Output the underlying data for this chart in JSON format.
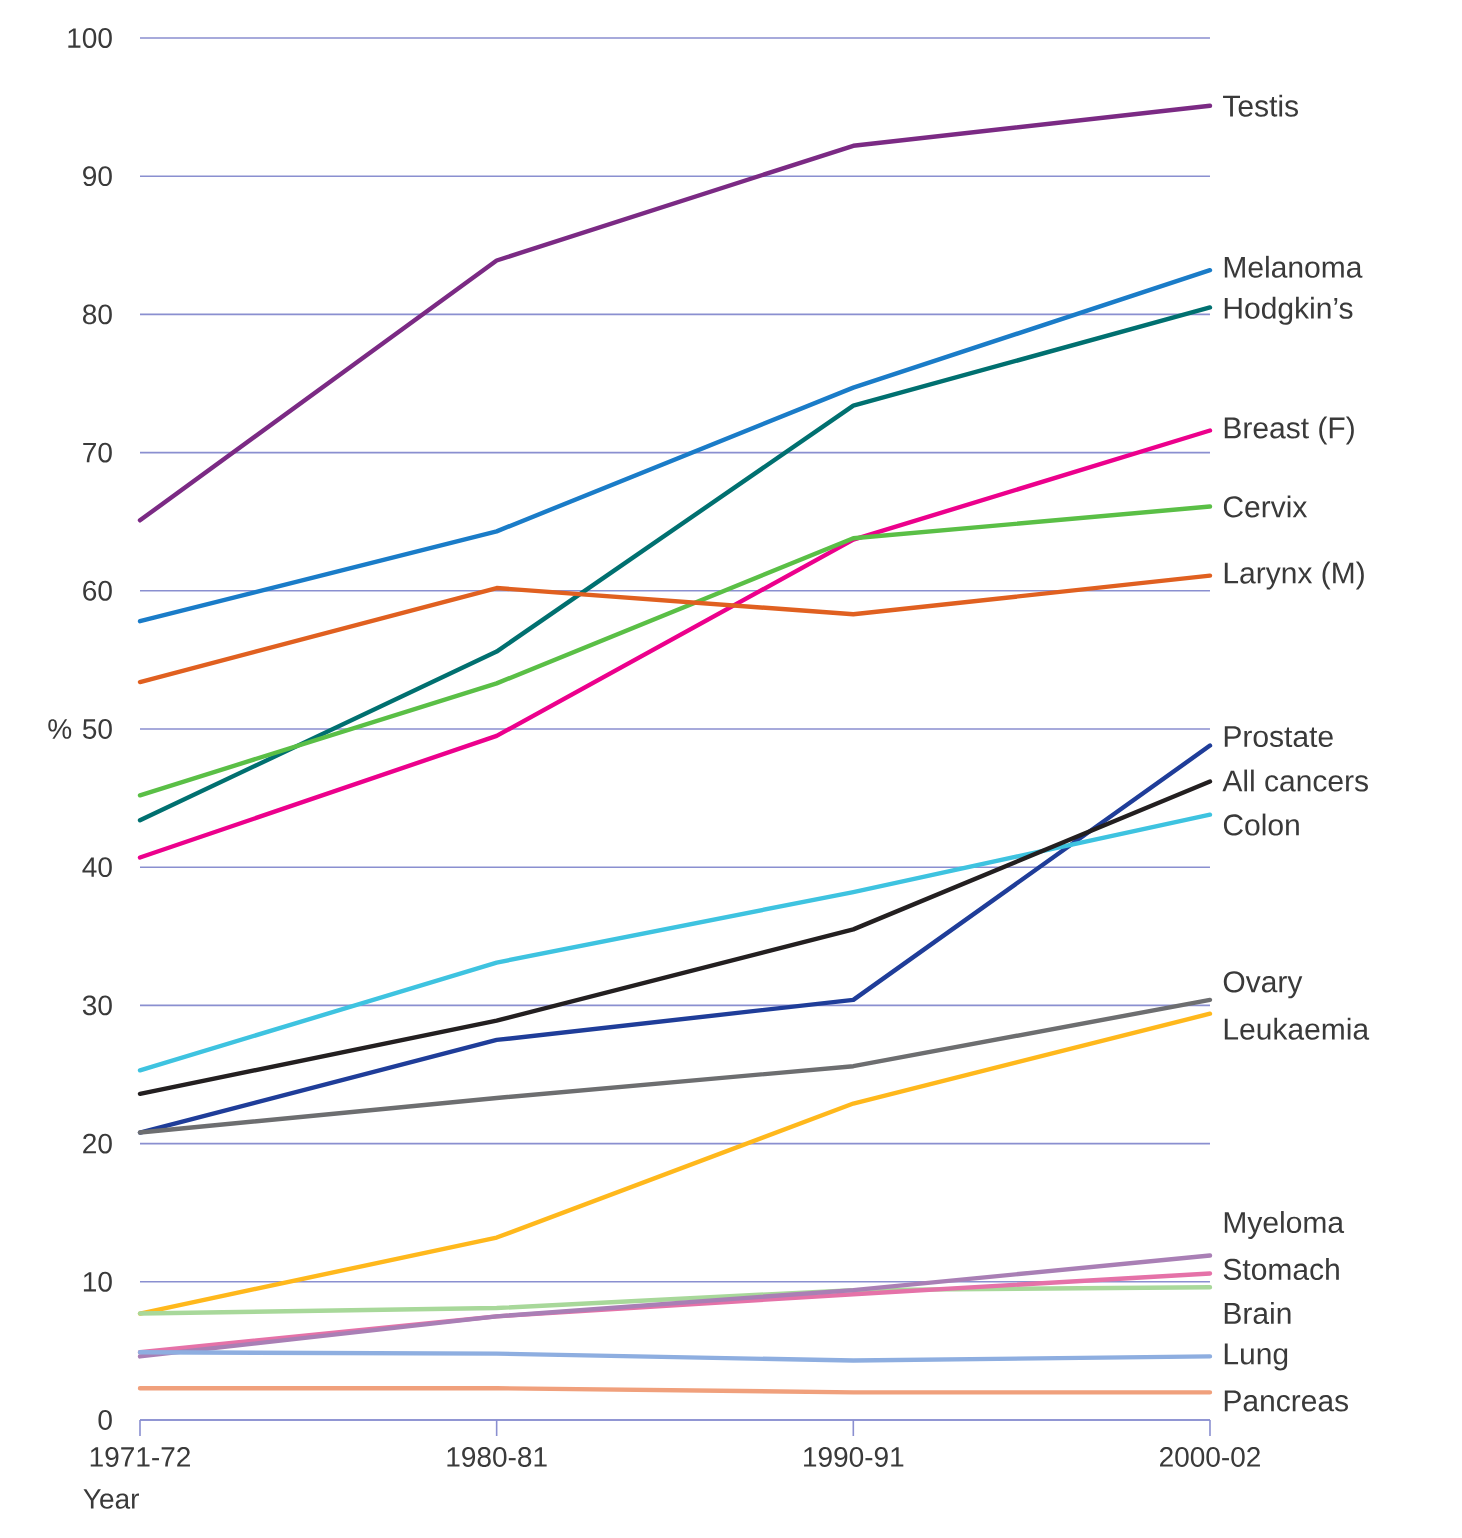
{
  "chart_data": {
    "type": "line",
    "xlabel": "Year",
    "ylabel": "%",
    "categories": [
      "1971-72",
      "1980-81",
      "1990-91",
      "2000-02"
    ],
    "ylim": [
      0,
      100
    ],
    "yticks": [
      0,
      10,
      20,
      30,
      40,
      50,
      60,
      70,
      80,
      90,
      100
    ],
    "grid": "y",
    "series": [
      {
        "name": "Testis",
        "color": "#7b2a84",
        "values": [
          65.1,
          83.9,
          92.2,
          95.1
        ]
      },
      {
        "name": "Melanoma",
        "color": "#1a7cc8",
        "values": [
          57.8,
          64.3,
          74.7,
          83.2
        ]
      },
      {
        "name": "Hodgkin’s",
        "color": "#007070",
        "values": [
          43.4,
          55.6,
          73.4,
          80.5
        ]
      },
      {
        "name": "Breast (F)",
        "color": "#ec008c",
        "values": [
          40.7,
          49.5,
          63.7,
          71.6
        ]
      },
      {
        "name": "Cervix",
        "color": "#5abf46",
        "values": [
          45.2,
          53.3,
          63.8,
          66.1
        ]
      },
      {
        "name": "Larynx (M)",
        "color": "#e06020",
        "values": [
          53.4,
          60.2,
          58.3,
          61.1
        ]
      },
      {
        "name": "Prostate",
        "color": "#1f3d99",
        "values": [
          20.8,
          27.5,
          30.4,
          48.8
        ]
      },
      {
        "name": "Colon",
        "color": "#3ec3e0",
        "values": [
          25.3,
          33.1,
          38.2,
          43.8
        ]
      },
      {
        "name": "Ovary",
        "color": "#6d6e70",
        "values": [
          20.8,
          23.3,
          25.6,
          30.4
        ]
      },
      {
        "name": "Leukaemia",
        "color": "#ffb81c",
        "values": [
          7.7,
          13.2,
          22.9,
          29.4
        ]
      },
      {
        "name": "Brain",
        "color": "#a8d89a",
        "values": [
          7.7,
          8.1,
          9.4,
          9.6
        ]
      },
      {
        "name": "Stomach",
        "color": "#e572a8",
        "values": [
          4.9,
          7.5,
          9.1,
          10.6
        ]
      },
      {
        "name": "Myeloma",
        "color": "#a97fb5",
        "values": [
          4.6,
          7.5,
          9.4,
          11.9
        ]
      },
      {
        "name": "Lung",
        "color": "#8eaee0",
        "values": [
          4.9,
          4.8,
          4.3,
          4.6
        ]
      },
      {
        "name": "Pancreas",
        "color": "#f0a07c",
        "values": [
          2.3,
          2.3,
          2.0,
          2.0
        ]
      },
      {
        "name": "All cancers",
        "color": "#231f20",
        "values": [
          23.6,
          28.9,
          35.5,
          46.2
        ]
      }
    ]
  }
}
